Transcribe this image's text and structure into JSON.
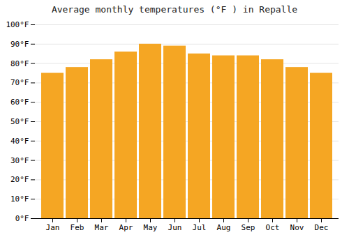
{
  "chart_data": {
    "type": "bar",
    "title": "Average monthly temperatures (°F ) in Repalle",
    "categories": [
      "Jan",
      "Feb",
      "Mar",
      "Apr",
      "May",
      "Jun",
      "Jul",
      "Aug",
      "Sep",
      "Oct",
      "Nov",
      "Dec"
    ],
    "values": [
      75,
      78,
      82,
      86,
      90,
      89,
      85,
      84,
      84,
      82,
      78,
      75
    ],
    "color": "#F5A623",
    "ylim": [
      0,
      100
    ],
    "yticks": [
      {
        "value": 0,
        "label": "0°F"
      },
      {
        "value": 10,
        "label": "10°F"
      },
      {
        "value": 20,
        "label": "20°F"
      },
      {
        "value": 30,
        "label": "30°F"
      },
      {
        "value": 40,
        "label": "40°F"
      },
      {
        "value": 50,
        "label": "50°F"
      },
      {
        "value": 60,
        "label": "60°F"
      },
      {
        "value": 70,
        "label": "70°F"
      },
      {
        "value": 80,
        "label": "80°F"
      },
      {
        "value": 90,
        "label": "90°F"
      },
      {
        "value": 100,
        "label": "100°F"
      }
    ],
    "grid": true
  }
}
